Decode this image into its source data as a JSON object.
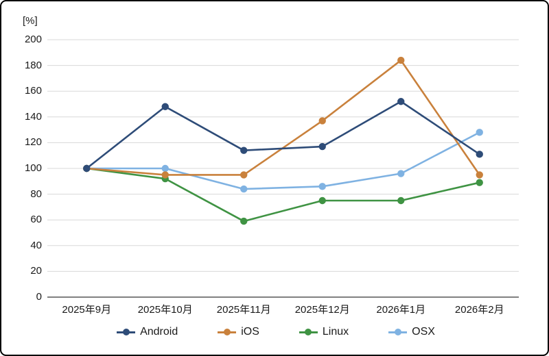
{
  "figure": {
    "background": "#ffffff",
    "border_color": "#000000"
  },
  "chart_data": {
    "type": "line",
    "title": "",
    "ylabel": "[%]",
    "xlabel": "",
    "categories": [
      "2025年9月",
      "2025年10月",
      "2025年11月",
      "2025年12月",
      "2026年1月",
      "2026年2月"
    ],
    "series": [
      {
        "name": "Android",
        "color": "#2e4c78",
        "values": [
          100,
          148,
          114,
          117,
          152,
          111
        ]
      },
      {
        "name": "iOS",
        "color": "#c9813c",
        "values": [
          100,
          95,
          95,
          137,
          184,
          95
        ]
      },
      {
        "name": "Linux",
        "color": "#3f9343",
        "values": [
          100,
          92,
          59,
          75,
          75,
          89
        ]
      },
      {
        "name": "OSX",
        "color": "#7fb2e2",
        "values": [
          100,
          100,
          84,
          86,
          96,
          128
        ]
      }
    ],
    "ylim": [
      0,
      200
    ],
    "y_ticks": [
      0,
      20,
      40,
      60,
      80,
      100,
      120,
      140,
      160,
      180,
      200
    ],
    "grid": true,
    "legend_position": "bottom",
    "colors": {
      "gridline": "#d8d8d8",
      "zero_axis": "#808080",
      "text": "#1a1a1a"
    }
  }
}
